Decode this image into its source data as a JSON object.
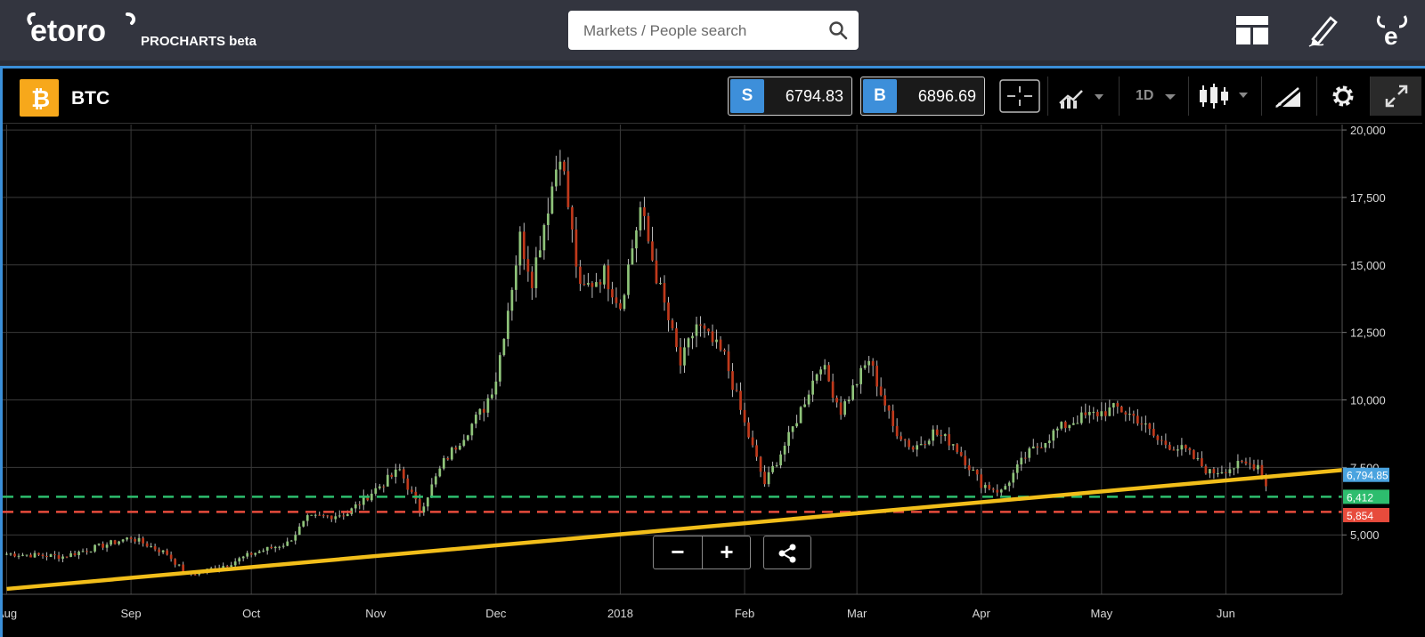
{
  "header": {
    "logo_text": "etoro",
    "product_label": "PROCHARTS beta",
    "search": {
      "placeholder": "Markets / People search"
    },
    "icons": [
      "layout-icon",
      "pencil-icon",
      "etoro-bull-icon"
    ]
  },
  "toolbar": {
    "asset": {
      "symbol": "BTC",
      "icon": "bitcoin-icon",
      "icon_color": "#f7a81b"
    },
    "sell": {
      "tag": "S",
      "price": "6794.83"
    },
    "buy": {
      "tag": "B",
      "price": "6896.69"
    },
    "timeframe": "1D",
    "buttons": [
      "crosshair-icon",
      "indicator-icon",
      "timeframe-dropdown",
      "candle-type-icon",
      "drawing-tools-icon",
      "settings-icon",
      "fullscreen-icon"
    ]
  },
  "controls": {
    "zoom_out": "−",
    "zoom_in": "+",
    "share": "share-icon"
  },
  "chart_data": {
    "type": "candlestick",
    "series_name": "BTC",
    "x_tick_labels": [
      "Aug",
      "Sep",
      "Oct",
      "Nov",
      "Dec",
      "2018",
      "Feb",
      "Mar",
      "Apr",
      "May",
      "Jun"
    ],
    "y_tick_labels": [
      "5,000",
      "7,500",
      "10,000",
      "12,500",
      "15,000",
      "17,500",
      "20,000"
    ],
    "ylim": [
      2800,
      20200
    ],
    "grid": true,
    "up_color": "#8fc47a",
    "down_color": "#c0391b",
    "points": [
      [
        "2017-08-01",
        4300
      ],
      [
        "2017-08-15",
        4200
      ],
      [
        "2017-09-01",
        4900
      ],
      [
        "2017-09-10",
        4300
      ],
      [
        "2017-09-15",
        3500
      ],
      [
        "2017-09-25",
        3900
      ],
      [
        "2017-10-01",
        4300
      ],
      [
        "2017-10-10",
        4700
      ],
      [
        "2017-10-15",
        5600
      ],
      [
        "2017-10-25",
        5800
      ],
      [
        "2017-11-01",
        6700
      ],
      [
        "2017-11-07",
        7400
      ],
      [
        "2017-11-12",
        5900
      ],
      [
        "2017-11-18",
        7700
      ],
      [
        "2017-11-28",
        9700
      ],
      [
        "2017-12-01",
        10800
      ],
      [
        "2017-12-07",
        16000
      ],
      [
        "2017-12-10",
        14500
      ],
      [
        "2017-12-17",
        19300
      ],
      [
        "2017-12-22",
        14000
      ],
      [
        "2017-12-28",
        14700
      ],
      [
        "2018-01-01",
        13500
      ],
      [
        "2018-01-06",
        17100
      ],
      [
        "2018-01-10",
        14600
      ],
      [
        "2018-01-16",
        11300
      ],
      [
        "2018-01-20",
        12800
      ],
      [
        "2018-01-27",
        11600
      ],
      [
        "2018-02-01",
        9100
      ],
      [
        "2018-02-06",
        6900
      ],
      [
        "2018-02-12",
        8600
      ],
      [
        "2018-02-20",
        11400
      ],
      [
        "2018-02-25",
        9600
      ],
      [
        "2018-03-04",
        11500
      ],
      [
        "2018-03-10",
        9000
      ],
      [
        "2018-03-15",
        8200
      ],
      [
        "2018-03-20",
        8800
      ],
      [
        "2018-03-25",
        8400
      ],
      [
        "2018-04-01",
        6900
      ],
      [
        "2018-04-06",
        6600
      ],
      [
        "2018-04-12",
        7900
      ],
      [
        "2018-04-20",
        8900
      ],
      [
        "2018-04-25",
        9300
      ],
      [
        "2018-05-05",
        9700
      ],
      [
        "2018-05-10",
        9300
      ],
      [
        "2018-05-15",
        8500
      ],
      [
        "2018-05-22",
        8100
      ],
      [
        "2018-05-28",
        7300
      ],
      [
        "2018-06-05",
        7600
      ],
      [
        "2018-06-09",
        7600
      ],
      [
        "2018-06-11",
        6800
      ]
    ],
    "trendline": {
      "color": "#f2be1a",
      "from": [
        "2017-08-01",
        3000
      ],
      "to": [
        "2018-06-30",
        7400
      ]
    },
    "levels": [
      {
        "label": "6,412",
        "value": 6412,
        "color": "#2dbd6e",
        "style": "dashed"
      },
      {
        "label": "5,854",
        "value": 5854,
        "color": "#e74b3c",
        "style": "dashed"
      }
    ],
    "current_price": {
      "label": "6,794.85",
      "value": 6794.85,
      "color": "#4aa3df"
    }
  }
}
